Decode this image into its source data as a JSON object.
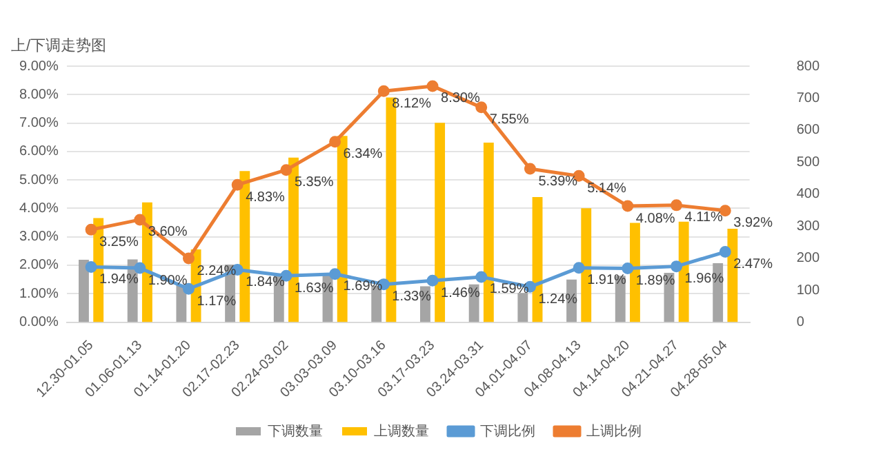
{
  "chart_data": {
    "type": "bar",
    "title": "上/下调走势图",
    "categories": [
      "12.30-01.05",
      "01.06-01.13",
      "01.14-01.20",
      "02.17-02.23",
      "02.24-03.02",
      "03.03-03.09",
      "03.10-03.16",
      "03.17-03.23",
      "03.24-03.31",
      "04.01-04.07",
      "04.08-04.13",
      "04.14-04.20",
      "04.21-04.27",
      "04.28-05.04"
    ],
    "series": [
      {
        "name": "下调数量",
        "axis": "y2",
        "color": "#a5a5a5",
        "values": [
          195,
          196,
          117,
          180,
          149,
          149,
          113,
          112,
          118,
          91,
          133,
          145,
          154,
          184
        ]
      },
      {
        "name": "上调数量",
        "axis": "y2",
        "color": "#ffc000",
        "values": [
          325,
          374,
          227,
          472,
          514,
          582,
          702,
          623,
          561,
          391,
          356,
          310,
          314,
          292
        ]
      },
      {
        "name": "下调比例",
        "type": "line",
        "color": "#5b9bd5",
        "values": [
          1.94,
          1.9,
          1.17,
          1.84,
          1.63,
          1.69,
          1.33,
          1.46,
          1.59,
          1.24,
          1.91,
          1.89,
          1.96,
          2.47
        ],
        "value_labels": [
          "1.94%",
          "1.90%",
          "1.17%",
          "1.84%",
          "1.63%",
          "1.69%",
          "1.33%",
          "1.46%",
          "1.59%",
          "1.24%",
          "1.91%",
          "1.89%",
          "1.96%",
          "2.47%"
        ]
      },
      {
        "name": "上调比例",
        "type": "line",
        "color": "#ed7d31",
        "values": [
          3.25,
          3.6,
          2.24,
          4.83,
          5.35,
          6.34,
          8.12,
          8.3,
          7.55,
          5.39,
          5.14,
          4.08,
          4.11,
          3.92
        ],
        "value_labels": [
          "3.25%",
          "3.60%",
          "2.24%",
          "4.83%",
          "5.35%",
          "6.34%",
          "8.12%",
          "8.30%",
          "7.55%",
          "5.39%",
          "5.14%",
          "4.08%",
          "4.11%",
          "3.92%"
        ]
      }
    ],
    "ylim": [
      0,
      9
    ],
    "yticks": [
      {
        "value": 0,
        "label": "0.00%"
      },
      {
        "value": 1,
        "label": "1.00%"
      },
      {
        "value": 2,
        "label": "2.00%"
      },
      {
        "value": 3,
        "label": "3.00%"
      },
      {
        "value": 4,
        "label": "4.00%"
      },
      {
        "value": 5,
        "label": "5.00%"
      },
      {
        "value": 6,
        "label": "6.00%"
      },
      {
        "value": 7,
        "label": "7.00%"
      },
      {
        "value": 8,
        "label": "8.00%"
      },
      {
        "value": 9,
        "label": "9.00%"
      }
    ],
    "y2lim": [
      0,
      800
    ],
    "y2ticks": [
      0,
      100,
      200,
      300,
      400,
      500,
      600,
      700,
      800
    ],
    "grid": "y",
    "legend": "bottom",
    "marker": "circle",
    "line_style": "solid"
  }
}
